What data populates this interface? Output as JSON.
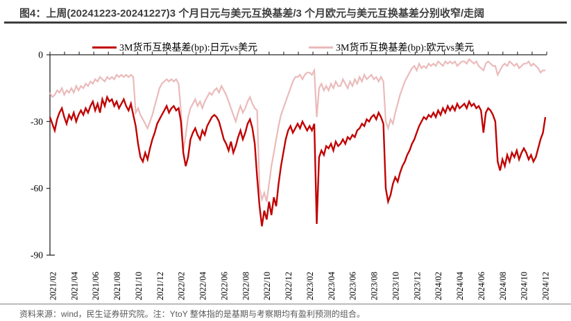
{
  "title": "图4：上周(20241223-20241227)3 个月日元与美元互换基差/3 个月欧元与美元互换基差分别收窄/走阔",
  "footer": {
    "source_note": "资料来源：wind，民生证券研究院。注：YtoY 整体指的是基期与考察期均有盈利预测的组合。"
  },
  "legend": [
    {
      "label": "3M货币互换基差(bp):日元vs美元",
      "color": "#c00000"
    },
    {
      "label": "3M货币互换基差(bp):欧元vs美元",
      "color": "#ebbaba"
    }
  ],
  "colors": {
    "jpy_series": "#c00000",
    "eur_series": "#ebbaba",
    "axis": "#262626"
  },
  "chart_data": {
    "type": "line",
    "title": "3M cross-currency basis swap (bp), weekly, 2021/01 - 2024/12",
    "x_axis": {
      "labels": [
        "2021/02",
        "2021/04",
        "2021/06",
        "2021/08",
        "2021/10",
        "2021/12",
        "2022/02",
        "2022/04",
        "2022/06",
        "2022/08",
        "2022/10",
        "2022/12",
        "2023/02",
        "2023/04",
        "2023/06",
        "2023/08",
        "2023/10",
        "2023/12",
        "2024/02",
        "2024/04",
        "2024/06",
        "2024/08",
        "2024/10",
        "2024/12"
      ],
      "frequency": "weekly"
    },
    "y_axis": {
      "ticks": [
        0,
        -30,
        -60,
        -90
      ],
      "min": -90,
      "max": 0,
      "unit": "bp"
    },
    "grid": false,
    "legend_position": "top",
    "series": [
      {
        "name": "3M货币互换基差(bp):日元vs美元",
        "color": "#c00000",
        "width": 2.4,
        "values": [
          -28,
          -31,
          -34,
          -29,
          -26,
          -24,
          -28,
          -31,
          -27,
          -29,
          -26,
          -30,
          -27,
          -25,
          -27,
          -24,
          -26,
          -23,
          -21,
          -25,
          -22,
          -26,
          -20,
          -23,
          -19,
          -21,
          -20,
          -23,
          -21,
          -24,
          -22,
          -20,
          -23,
          -25,
          -22,
          -27,
          -32,
          -40,
          -46,
          -48,
          -44,
          -47,
          -42,
          -38,
          -35,
          -31,
          -29,
          -27,
          -25,
          -23,
          -26,
          -24,
          -23,
          -25,
          -24,
          -30,
          -44,
          -50,
          -46,
          -38,
          -35,
          -33,
          -36,
          -38,
          -34,
          -36,
          -32,
          -30,
          -28,
          -27,
          -28,
          -30,
          -34,
          -38,
          -40,
          -43,
          -39,
          -44,
          -41,
          -37,
          -34,
          -38,
          -35,
          -31,
          -29,
          -33,
          -40,
          -55,
          -68,
          -77,
          -70,
          -74,
          -66,
          -72,
          -64,
          -68,
          -58,
          -50,
          -44,
          -38,
          -34,
          -32,
          -35,
          -33,
          -31,
          -33,
          -30,
          -32,
          -34,
          -32,
          -34,
          -31,
          -76,
          -46,
          -43,
          -45,
          -41,
          -42,
          -40,
          -43,
          -39,
          -41,
          -40,
          -38,
          -40,
          -37,
          -38,
          -36,
          -37,
          -34,
          -33,
          -31,
          -32,
          -29,
          -30,
          -28,
          -27,
          -29,
          -26,
          -28,
          -31,
          -60,
          -66,
          -63,
          -58,
          -55,
          -57,
          -53,
          -50,
          -48,
          -45,
          -43,
          -40,
          -38,
          -35,
          -32,
          -30,
          -28,
          -29,
          -27,
          -28,
          -26,
          -28,
          -25,
          -27,
          -24,
          -26,
          -23,
          -25,
          -23,
          -25,
          -22,
          -24,
          -23,
          -22,
          -24,
          -21,
          -23,
          -22,
          -24,
          -23,
          -25,
          -35,
          -26,
          -24,
          -25,
          -27,
          -30,
          -48,
          -52,
          -47,
          -50,
          -45,
          -48,
          -44,
          -46,
          -43,
          -47,
          -44,
          -42,
          -44,
          -47,
          -45,
          -48,
          -46,
          -42,
          -38,
          -35,
          -28
        ]
      },
      {
        "name": "3M货币互换基差(bp):欧元vs美元",
        "color": "#ebbaba",
        "width": 2.2,
        "values": [
          -17,
          -19,
          -18,
          -16,
          -17,
          -15,
          -18,
          -16,
          -17,
          -15,
          -17,
          -14,
          -16,
          -14,
          -15,
          -13,
          -14,
          -12,
          -13,
          -11,
          -12,
          -10,
          -11,
          -12,
          -10,
          -11,
          -10,
          -11,
          -9,
          -10,
          -9,
          -10,
          -9,
          -10,
          -9,
          -10,
          -26,
          -24,
          -27,
          -29,
          -31,
          -33,
          -30,
          -27,
          -23,
          -19,
          -15,
          -13,
          -12,
          -11,
          -12,
          -11,
          -12,
          -11,
          -13,
          -25,
          -43,
          -36,
          -28,
          -24,
          -22,
          -20,
          -23,
          -21,
          -24,
          -21,
          -19,
          -17,
          -18,
          -16,
          -15,
          -17,
          -14,
          -16,
          -18,
          -21,
          -24,
          -27,
          -30,
          -26,
          -23,
          -26,
          -24,
          -21,
          -19,
          -22,
          -24,
          -25,
          -60,
          -65,
          -62,
          -66,
          -58,
          -50,
          -44,
          -38,
          -32,
          -27,
          -24,
          -21,
          -18,
          -15,
          -12,
          -10,
          -10,
          -9,
          -11,
          -9,
          -8,
          -8,
          -9,
          -7,
          -28,
          -15,
          -13,
          -16,
          -14,
          -16,
          -13,
          -15,
          -12,
          -14,
          -14,
          -11,
          -13,
          -15,
          -12,
          -14,
          -11,
          -13,
          -10,
          -12,
          -9,
          -11,
          -10,
          -9,
          -11,
          -10,
          -12,
          -10,
          -12,
          -30,
          -33,
          -29,
          -31,
          -26,
          -22,
          -18,
          -15,
          -12,
          -10,
          -8,
          -6,
          -5,
          -7,
          -4,
          -6,
          -5,
          -6,
          -4,
          -5,
          -4,
          -5,
          -3,
          -4,
          -5,
          -3,
          -4,
          -3,
          -4,
          -3,
          -5,
          -4,
          -3,
          -3,
          -4,
          -2,
          -3,
          -4,
          -3,
          -5,
          -6,
          -7,
          -4,
          -3,
          -4,
          -5,
          -5,
          -9,
          -7,
          -5,
          -4,
          -5,
          -3,
          -4,
          -5,
          -4,
          -6,
          -5,
          -4,
          -4,
          -3,
          -5,
          -4,
          -5,
          -6,
          -8,
          -7,
          -7
        ]
      }
    ]
  }
}
